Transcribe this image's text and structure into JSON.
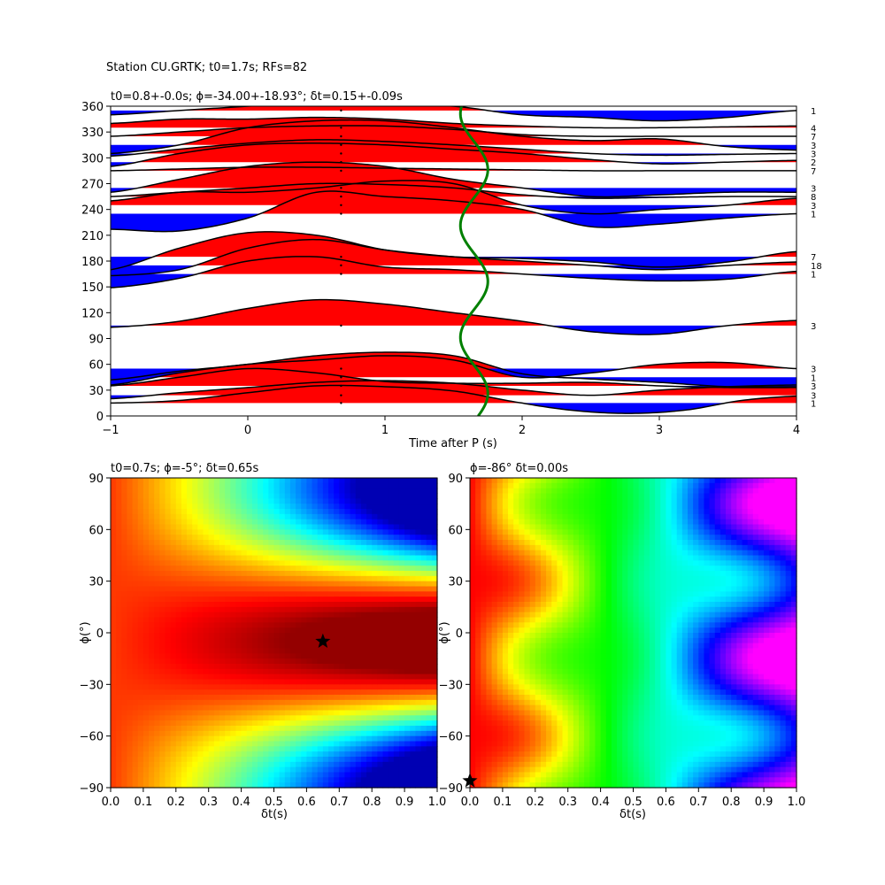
{
  "figure": {
    "suptitle": "Station CU.GRTK; t0=1.7s; RFs=82"
  },
  "chart_data": [
    {
      "type": "line",
      "title": "t0=0.8+-0.0s; ϕ=-34.00+-18.93°; δt=0.15+-0.09s",
      "xlabel": "Time after P (s)",
      "ylabel": "",
      "xlim": [
        -1,
        4
      ],
      "ylim": [
        0,
        360
      ],
      "xticks": [
        -1,
        0,
        1,
        2,
        3,
        4
      ],
      "yticks": [
        0,
        30,
        60,
        90,
        120,
        150,
        180,
        210,
        240,
        270,
        300,
        330,
        360
      ],
      "positive_fill_color": "#ff0000",
      "negative_fill_color": "#0000ff",
      "t0_curve_color": "#008000",
      "t0_curve": {
        "mean": 1.65,
        "amplitude": 0.1,
        "period_deg": 130
      },
      "series": [
        {
          "baziminal": 15,
          "count": "1",
          "points": [
            [
              -1,
              0
            ],
            [
              -0.5,
              3
            ],
            [
              0,
              12
            ],
            [
              0.5,
              20
            ],
            [
              1,
              19
            ],
            [
              1.5,
              14
            ],
            [
              2,
              0
            ],
            [
              2.4,
              -9
            ],
            [
              2.8,
              -12
            ],
            [
              3.2,
              -8
            ],
            [
              3.6,
              3
            ],
            [
              4,
              8
            ]
          ]
        },
        {
          "baziminal": 24,
          "count": "3",
          "points": [
            [
              -1,
              -4
            ],
            [
              -0.5,
              3
            ],
            [
              0,
              9
            ],
            [
              0.5,
              15
            ],
            [
              1,
              17
            ],
            [
              1.5,
              14
            ],
            [
              2,
              6
            ],
            [
              2.5,
              0
            ],
            [
              3,
              6
            ],
            [
              3.5,
              10
            ],
            [
              4,
              12
            ]
          ]
        },
        {
          "baziminal": 35,
          "count": "3",
          "points": [
            [
              -1,
              0
            ],
            [
              -0.5,
              10
            ],
            [
              0,
              20
            ],
            [
              0.5,
              15
            ],
            [
              1,
              5
            ],
            [
              1.5,
              3
            ],
            [
              2,
              3
            ],
            [
              2.5,
              4
            ],
            [
              3,
              0
            ],
            [
              3.5,
              -2
            ],
            [
              4,
              -2
            ]
          ]
        },
        {
          "baziminal": 45,
          "count": "1",
          "points": [
            [
              -1,
              -3
            ],
            [
              -0.5,
              7
            ],
            [
              0,
              15
            ],
            [
              0.5,
              25
            ],
            [
              1,
              29
            ],
            [
              1.5,
              25
            ],
            [
              2,
              4
            ],
            [
              2.5,
              -2
            ],
            [
              3,
              -6
            ],
            [
              3.5,
              -11
            ],
            [
              4,
              -11
            ]
          ]
        },
        {
          "baziminal": 55,
          "count": "3",
          "points": [
            [
              -1,
              -19
            ],
            [
              -0.5,
              -5
            ],
            [
              0,
              5
            ],
            [
              0.5,
              10
            ],
            [
              1,
              15
            ],
            [
              1.5,
              10
            ],
            [
              2,
              -10
            ],
            [
              2.5,
              -5
            ],
            [
              3,
              5
            ],
            [
              3.5,
              7
            ],
            [
              4,
              0
            ]
          ]
        },
        {
          "baziminal": 105,
          "count": "3",
          "points": [
            [
              -1,
              -2
            ],
            [
              -0.5,
              5
            ],
            [
              0,
              20
            ],
            [
              0.5,
              30
            ],
            [
              1,
              25
            ],
            [
              1.5,
              15
            ],
            [
              2,
              5
            ],
            [
              2.5,
              -7
            ],
            [
              3,
              -10
            ],
            [
              3.5,
              0
            ],
            [
              4,
              6
            ]
          ]
        },
        {
          "baziminal": 165,
          "count": "1",
          "points": [
            [
              -1,
              -16
            ],
            [
              -0.5,
              -5
            ],
            [
              0,
              15
            ],
            [
              0.5,
              20
            ],
            [
              1,
              8
            ],
            [
              1.5,
              5
            ],
            [
              2,
              0
            ],
            [
              2.5,
              -5
            ],
            [
              3,
              -8
            ],
            [
              3.5,
              -6
            ],
            [
              4,
              3
            ]
          ]
        },
        {
          "baziminal": 175,
          "count": "18",
          "points": [
            [
              -1,
              -12
            ],
            [
              -0.5,
              -5
            ],
            [
              0,
              20
            ],
            [
              0.5,
              30
            ],
            [
              1,
              18
            ],
            [
              1.5,
              10
            ],
            [
              2,
              5
            ],
            [
              2.5,
              0
            ],
            [
              3,
              -5
            ],
            [
              3.5,
              0
            ],
            [
              4,
              4
            ]
          ]
        },
        {
          "baziminal": 185,
          "count": "7",
          "points": [
            [
              -1,
              -15
            ],
            [
              -0.5,
              10
            ],
            [
              0,
              28
            ],
            [
              0.5,
              25
            ],
            [
              1,
              8
            ],
            [
              1.5,
              0
            ],
            [
              2,
              -2
            ],
            [
              2.5,
              -6
            ],
            [
              3,
              -12
            ],
            [
              3.5,
              -6
            ],
            [
              4,
              6
            ]
          ]
        },
        {
          "baziminal": 235,
          "count": "1",
          "points": [
            [
              -1,
              -18
            ],
            [
              -0.5,
              -20
            ],
            [
              0,
              -5
            ],
            [
              0.5,
              25
            ],
            [
              1,
              20
            ],
            [
              1.5,
              15
            ],
            [
              2,
              5
            ],
            [
              2.5,
              -15
            ],
            [
              3,
              -12
            ],
            [
              3.5,
              -5
            ],
            [
              4,
              0
            ]
          ]
        },
        {
          "baziminal": 245,
          "count": "3",
          "points": [
            [
              -1,
              5
            ],
            [
              -0.5,
              15
            ],
            [
              0,
              15
            ],
            [
              0.5,
              20
            ],
            [
              1,
              28
            ],
            [
              1.5,
              25
            ],
            [
              2,
              0
            ],
            [
              2.5,
              -10
            ],
            [
              3,
              -5
            ],
            [
              3.5,
              0
            ],
            [
              4,
              8
            ]
          ]
        },
        {
          "baziminal": 255,
          "count": "8",
          "points": [
            [
              -1,
              0
            ],
            [
              -0.5,
              5
            ],
            [
              0,
              10
            ],
            [
              0.5,
              15
            ],
            [
              1,
              14
            ],
            [
              1.5,
              10
            ],
            [
              2,
              2
            ],
            [
              2.5,
              -2
            ],
            [
              3,
              -1
            ],
            [
              3.5,
              0
            ],
            [
              4,
              0
            ]
          ]
        },
        {
          "baziminal": 265,
          "count": "3",
          "points": [
            [
              -1,
              -5
            ],
            [
              -0.5,
              10
            ],
            [
              0,
              25
            ],
            [
              0.5,
              30
            ],
            [
              1,
              25
            ],
            [
              1.5,
              10
            ],
            [
              2,
              0
            ],
            [
              2.5,
              -10
            ],
            [
              3,
              -8
            ],
            [
              3.5,
              -5
            ],
            [
              4,
              -5
            ]
          ]
        },
        {
          "baziminal": 285,
          "count": "7",
          "points": [
            [
              -1,
              0
            ],
            [
              -0.5,
              2
            ],
            [
              0,
              4
            ],
            [
              0.5,
              4
            ],
            [
              1,
              3
            ],
            [
              1.5,
              2
            ],
            [
              2,
              1
            ],
            [
              2.5,
              0
            ],
            [
              3,
              0
            ],
            [
              3.5,
              0
            ],
            [
              4,
              0
            ]
          ]
        },
        {
          "baziminal": 295,
          "count": "2",
          "points": [
            [
              -1,
              -5
            ],
            [
              -0.5,
              10
            ],
            [
              0,
              20
            ],
            [
              0.5,
              22
            ],
            [
              1,
              20
            ],
            [
              1.5,
              15
            ],
            [
              2,
              10
            ],
            [
              2.5,
              3
            ],
            [
              3,
              -2
            ],
            [
              3.5,
              0
            ],
            [
              4,
              2
            ]
          ]
        },
        {
          "baziminal": 305,
          "count": "3",
          "points": [
            [
              -1,
              -3
            ],
            [
              -0.5,
              5
            ],
            [
              0,
              12
            ],
            [
              0.5,
              16
            ],
            [
              1,
              14
            ],
            [
              1.5,
              10
            ],
            [
              2,
              5
            ],
            [
              2.5,
              0
            ],
            [
              3,
              -2
            ],
            [
              3.5,
              -1
            ],
            [
              4,
              0
            ]
          ]
        },
        {
          "baziminal": 315,
          "count": "3",
          "points": [
            [
              -1,
              -10
            ],
            [
              -0.5,
              0
            ],
            [
              0,
              20
            ],
            [
              0.5,
              28
            ],
            [
              1,
              28
            ],
            [
              1.5,
              20
            ],
            [
              2,
              10
            ],
            [
              2.5,
              5
            ],
            [
              3,
              7
            ],
            [
              3.5,
              -2
            ],
            [
              4,
              -6
            ]
          ]
        },
        {
          "baziminal": 325,
          "count": "7",
          "points": [
            [
              -1,
              0
            ],
            [
              -0.5,
              5
            ],
            [
              0,
              10
            ],
            [
              0.5,
              12
            ],
            [
              1,
              12
            ],
            [
              1.5,
              8
            ],
            [
              2,
              2
            ],
            [
              2.5,
              0
            ],
            [
              3,
              0
            ],
            [
              3.5,
              0
            ],
            [
              4,
              0
            ]
          ]
        },
        {
          "baziminal": 335,
          "count": "4",
          "points": [
            [
              -1,
              5
            ],
            [
              -0.5,
              10
            ],
            [
              0,
              10
            ],
            [
              0.5,
              12
            ],
            [
              1,
              10
            ],
            [
              1.5,
              5
            ],
            [
              2,
              2
            ],
            [
              2.5,
              0
            ],
            [
              3,
              0
            ],
            [
              3.5,
              1
            ],
            [
              4,
              2
            ]
          ]
        },
        {
          "baziminal": 355,
          "count": "1",
          "points": [
            [
              -1,
              -5
            ],
            [
              -0.5,
              0
            ],
            [
              0,
              5
            ],
            [
              0.5,
              10
            ],
            [
              1,
              8
            ],
            [
              1.5,
              5
            ],
            [
              2,
              -5
            ],
            [
              2.5,
              -8
            ],
            [
              3,
              -12
            ],
            [
              3.5,
              -8
            ],
            [
              4,
              0
            ]
          ]
        }
      ]
    },
    {
      "type": "heatmap",
      "title": "t0=0.7s; ϕ=-5°; δt=0.65s",
      "xlabel": "δt(s)",
      "ylabel": "ϕ(°)",
      "xlim": [
        0,
        1
      ],
      "ylim": [
        -90,
        90
      ],
      "xticks": [
        "0.0",
        "0.1",
        "0.2",
        "0.3",
        "0.4",
        "0.5",
        "0.6",
        "0.7",
        "0.8",
        "0.9",
        "1.0"
      ],
      "yticks": [
        "−90",
        "−60",
        "−30",
        "0",
        "30",
        "60",
        "90"
      ],
      "colormap": "jet",
      "best_point": {
        "dt": 0.65,
        "phi": -5
      },
      "description": "Energy maximum (dark red) centered near phi=-5, dt=0.65; values fall off toward blue at large dt and phi=+60/-60"
    },
    {
      "type": "heatmap",
      "title": "ϕ=-86° δt=0.00s",
      "xlabel": "δt(s)",
      "ylabel": "ϕ(°)",
      "xlim": [
        0,
        1
      ],
      "ylim": [
        -90,
        90
      ],
      "xticks": [
        "0.0",
        "0.1",
        "0.2",
        "0.3",
        "0.4",
        "0.5",
        "0.6",
        "0.7",
        "0.8",
        "0.9",
        "1.0"
      ],
      "yticks": [
        "−90",
        "−60",
        "−30",
        "0",
        "30",
        "60",
        "90"
      ],
      "colormap": "hsv",
      "best_point": {
        "dt": 0.0,
        "phi": -86
      },
      "description": "Banded hue pattern increasing with dt, oscillating in phi with period ~75 deg; magenta maxima near dt=1.0 at phi=-15 and 75"
    }
  ]
}
